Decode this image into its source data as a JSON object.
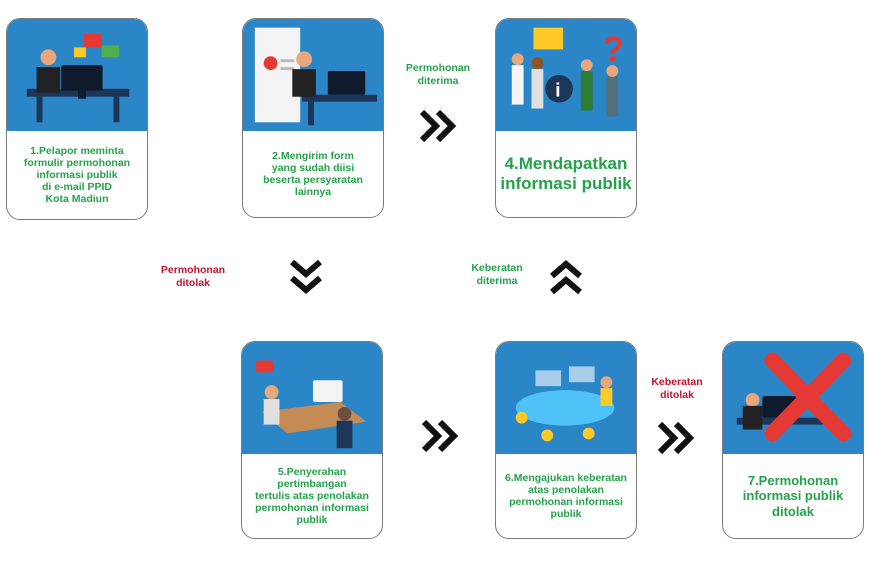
{
  "colors": {
    "scene_blue": "#2a86c7",
    "caption_green": "#23a34a",
    "label_red": "#c8102e",
    "chevron": "#111111",
    "reject_x": "#e53935"
  },
  "steps": {
    "s1": {
      "caption": "1.Pelapor meminta\nformulir permohonan\ninformasi publik\ndi e-mail PPID\nKota Madiun",
      "icon": "person-at-computer-with-chat-bubbles"
    },
    "s2": {
      "caption": "2.Mengirim form\nyang sudah diisi\nbeserta persyaratan\nlainnya",
      "icon": "person-sending-form"
    },
    "s4": {
      "caption": "4.Mendapatkan\ninformasi publik",
      "icon": "people-with-information-signs"
    },
    "s5": {
      "caption": "5.Penyerahan pertimbangan\ntertulis atas penolakan\npermohonan informasi\npublik",
      "icon": "two-people-meeting-at-desk"
    },
    "s6": {
      "caption": "6.Mengajukan keberatan\natas penolakan\npermohonan informasi\npublik",
      "icon": "team-meeting-table"
    },
    "s7": {
      "caption": "7.Permohonan\ninformasi publik\nditolak",
      "icon": "person-with-red-cross"
    }
  },
  "labels": {
    "permohonan_diterima": "Permohonan\nditerima",
    "permohonan_ditolak": "Permohonan\nditolak",
    "keberatan_diterima": "Keberatan\nditerima",
    "keberatan_ditolak": "Keberatan\nditolak"
  },
  "arrows": {
    "a_2_to_4": "double-chevron-right",
    "a_2_to_5": "double-chevron-down",
    "a_6_to_4": "double-chevron-up",
    "a_5_to_6": "double-chevron-right",
    "a_6_to_7": "double-chevron-right"
  }
}
